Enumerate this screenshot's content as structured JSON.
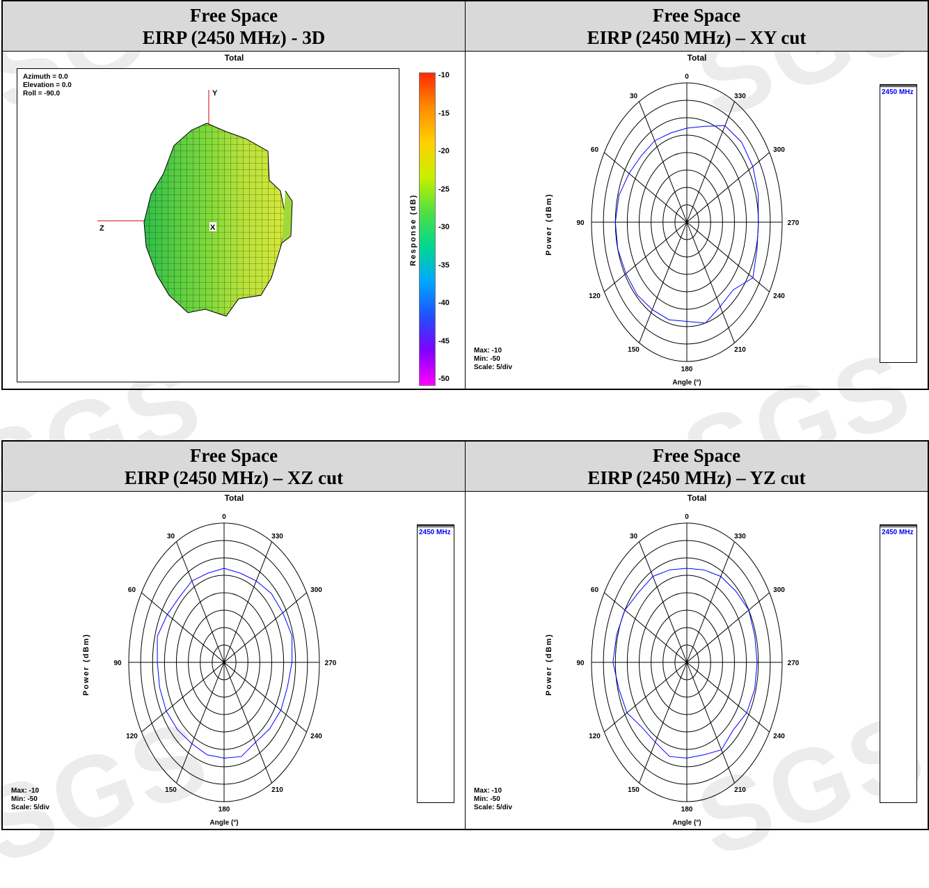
{
  "watermark": "SGS",
  "panels": [
    {
      "header_line1": "Free Space",
      "header_line2": "EIRP (2450 MHz) - 3D",
      "plot_title": "Total",
      "view": {
        "azimuth": "Azimuth = 0.0",
        "elevation": "Elevation = 0.0",
        "roll": "Roll = -90.0"
      },
      "axes": {
        "y": "Y",
        "z": "Z",
        "x": "X"
      },
      "colorbar_label": "Response (dB)",
      "colorbar_ticks": [
        "-10",
        "-15",
        "-20",
        "-25",
        "-30",
        "-35",
        "-40",
        "-45",
        "-50"
      ]
    },
    {
      "header_line1": "Free Space",
      "header_line2": "EIRP (2450 MHz) – XY cut",
      "plot_title": "Total",
      "ylabel": "Power (dBm)",
      "xlabel": "Angle (°)",
      "legend": "2450 MHz",
      "info": {
        "max": "Max: -10",
        "min": "Min: -50",
        "scale": "Scale: 5/div"
      }
    },
    {
      "header_line1": "Free Space",
      "header_line2": "EIRP (2450 MHz) – XZ cut",
      "plot_title": "Total",
      "ylabel": "Power (dBm)",
      "xlabel": "Angle (°)",
      "legend": "2450 MHz",
      "info": {
        "max": "Max: -10",
        "min": "Min: -50",
        "scale": "Scale: 5/div"
      }
    },
    {
      "header_line1": "Free Space",
      "header_line2": "EIRP (2450 MHz) – YZ cut",
      "plot_title": "Total",
      "ylabel": "Power (dBm)",
      "xlabel": "Angle (°)",
      "legend": "2450 MHz",
      "info": {
        "max": "Max: -10",
        "min": "Min: -50",
        "scale": "Scale: 5/div"
      }
    }
  ],
  "angle_labels": [
    "0",
    "330",
    "300",
    "270",
    "240",
    "210",
    "180",
    "150",
    "120",
    "90",
    "60",
    "30"
  ],
  "trace_color": "#0000ff",
  "chart_data": [
    {
      "type": "polar",
      "title": "EIRP (2450 MHz) – XY cut",
      "rlim": [
        -50,
        -10
      ],
      "r_step": 5,
      "angles_deg": [
        0,
        15,
        30,
        45,
        60,
        75,
        90,
        105,
        120,
        135,
        150,
        165,
        180,
        195,
        210,
        225,
        240,
        255,
        270,
        285,
        300,
        315,
        330,
        345
      ],
      "series": [
        {
          "name": "2450 MHz",
          "values": [
            -23,
            -23.5,
            -23,
            -23,
            -22,
            -20.5,
            -20,
            -20,
            -20.5,
            -20.5,
            -21,
            -21,
            -21.5,
            -20,
            -22,
            -22.5,
            -18,
            -19.5,
            -20,
            -19,
            -18,
            -17.5,
            -18,
            -21.5
          ]
        }
      ]
    },
    {
      "type": "polar",
      "title": "EIRP (2450 MHz) – XZ cut",
      "rlim": [
        -50,
        -10
      ],
      "r_step": 5,
      "angles_deg": [
        0,
        15,
        30,
        45,
        60,
        75,
        90,
        105,
        120,
        135,
        150,
        165,
        180,
        195,
        210,
        225,
        240,
        255,
        270,
        285,
        300,
        315,
        330,
        345
      ],
      "series": [
        {
          "name": "2450 MHz",
          "values": [
            -23,
            -23.5,
            -23,
            -23.5,
            -22.5,
            -21,
            -22,
            -22,
            -22,
            -22.5,
            -23,
            -22.5,
            -22.5,
            -22,
            -23.5,
            -23,
            -22.5,
            -22.5,
            -21.5,
            -20.5,
            -21.5,
            -22,
            -23,
            -23.5
          ]
        }
      ]
    },
    {
      "type": "polar",
      "title": "EIRP (2450 MHz) – YZ cut",
      "rlim": [
        -50,
        -10
      ],
      "r_step": 5,
      "angles_deg": [
        0,
        15,
        30,
        45,
        60,
        75,
        90,
        105,
        120,
        135,
        150,
        165,
        180,
        195,
        210,
        225,
        240,
        255,
        270,
        285,
        300,
        315,
        330,
        345
      ],
      "series": [
        {
          "name": "2450 MHz",
          "values": [
            -23,
            -22.5,
            -21.5,
            -21.5,
            -20,
            -19.5,
            -19,
            -20.5,
            -21,
            -23.5,
            -23.5,
            -22,
            -22.5,
            -22.5,
            -21,
            -22.5,
            -21,
            -20.5,
            -20.5,
            -20.5,
            -20,
            -21,
            -21.5,
            -22.5
          ]
        }
      ]
    }
  ]
}
